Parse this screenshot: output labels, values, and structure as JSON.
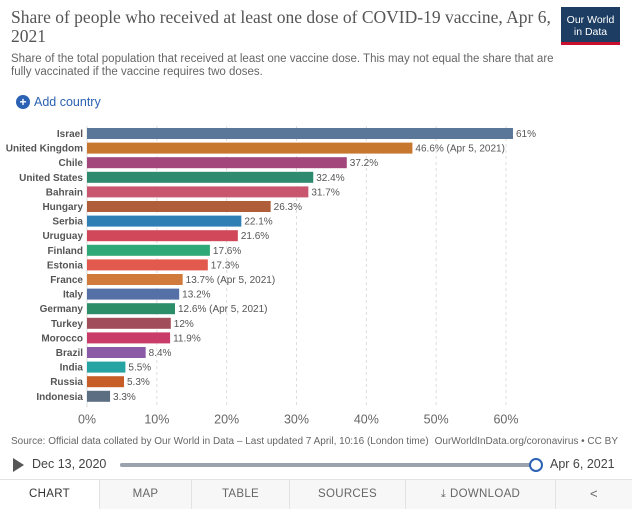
{
  "header": {
    "title": "Share of people who received at least one dose of COVID-19 vaccine, Apr 6, 2021",
    "subtitle": "Share of the total population that received at least one vaccine dose. This may not equal the share that are fully vaccinated if the vaccine requires two doses.",
    "logo_line1": "Our World",
    "logo_line2": "in Data"
  },
  "controls": {
    "add_country_label": "Add country",
    "add_icon": "plus-circle-icon"
  },
  "chart_data": {
    "type": "bar",
    "orientation": "horizontal",
    "title": "Share of people who received at least one dose of COVID-19 vaccine, Apr 6, 2021",
    "categories": [
      "Israel",
      "United Kingdom",
      "Chile",
      "United States",
      "Bahrain",
      "Hungary",
      "Serbia",
      "Uruguay",
      "Finland",
      "Estonia",
      "France",
      "Italy",
      "Germany",
      "Turkey",
      "Morocco",
      "Brazil",
      "India",
      "Russia",
      "Indonesia"
    ],
    "values": [
      61,
      46.6,
      37.2,
      32.4,
      31.7,
      26.3,
      22.1,
      21.6,
      17.6,
      17.3,
      13.7,
      13.2,
      12.6,
      12,
      11.9,
      8.4,
      5.5,
      5.3,
      3.3
    ],
    "labels": [
      "61%",
      "46.6% (Apr 5, 2021)",
      "37.2%",
      "32.4%",
      "31.7%",
      "26.3%",
      "22.1%",
      "21.6%",
      "17.6%",
      "17.3%",
      "13.7% (Apr 5, 2021)",
      "13.2%",
      "12.6% (Apr 5, 2021)",
      "12%",
      "11.9%",
      "8.4%",
      "5.5%",
      "5.3%",
      "3.3%"
    ],
    "colors": [
      "#5a7799",
      "#c8772f",
      "#a2467c",
      "#2d8a6e",
      "#c8566f",
      "#b05e3a",
      "#2f7fb5",
      "#d0485a",
      "#2ea876",
      "#e25a4e",
      "#d07a3c",
      "#5470a7",
      "#2c8e69",
      "#a24e5a",
      "#c93c6a",
      "#8a5aa6",
      "#26a4a4",
      "#c85e27",
      "#5b6e82"
    ],
    "xlim": [
      0,
      65
    ],
    "xticks": [
      0,
      10,
      20,
      30,
      40,
      50,
      60
    ],
    "xtick_labels": [
      "0%",
      "10%",
      "20%",
      "30%",
      "40%",
      "50%",
      "60%"
    ],
    "grid": true
  },
  "footer": {
    "source": "Source: Official data collated by Our World in Data – Last updated 7 April, 10:16 (London time)",
    "source_right": "OurWorldInData.org/coronavirus • CC BY"
  },
  "timeline": {
    "start_label": "Dec 13, 2020",
    "end_label": "Apr 6, 2021",
    "position_fraction": 1.0,
    "play_icon": "play-icon"
  },
  "tabs": [
    {
      "label": "CHART",
      "active": true
    },
    {
      "label": "MAP",
      "active": false
    },
    {
      "label": "TABLE",
      "active": false
    },
    {
      "label": "SOURCES",
      "active": false
    },
    {
      "label": "DOWNLOAD",
      "active": false
    }
  ],
  "share_icon": "share-icon"
}
